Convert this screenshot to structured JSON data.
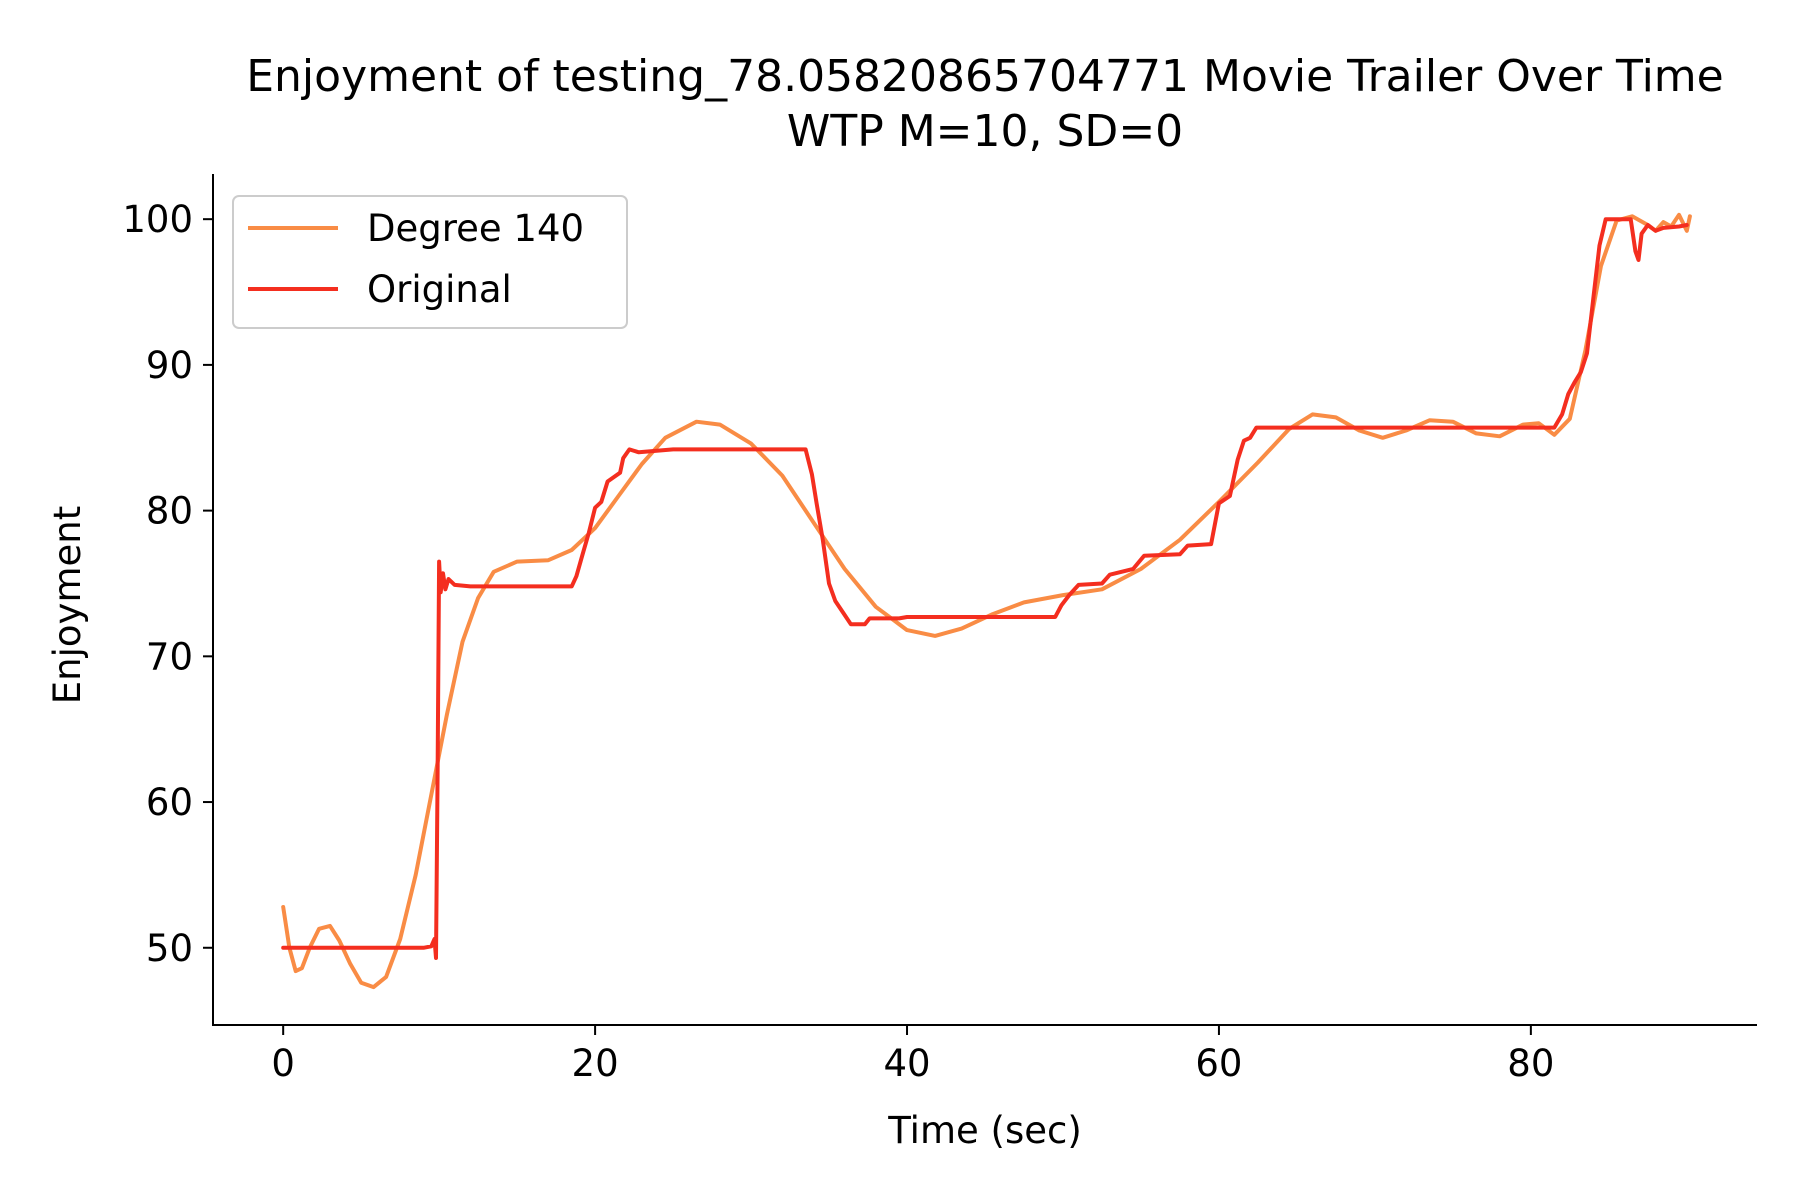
{
  "chart_data": {
    "type": "line",
    "title": "Enjoyment of testing_78.05820865704771 Movie Trailer Over Time",
    "subtitle": "WTP M=10, SD=0",
    "xlabel": "Time (sec)",
    "ylabel": "Enjoyment",
    "xlim": [
      -4.5,
      94.5
    ],
    "ylim": [
      44.7,
      103.1
    ],
    "xticks": [
      0,
      20,
      40,
      60,
      80
    ],
    "yticks": [
      50,
      60,
      70,
      80,
      90,
      100
    ],
    "grid": false,
    "legend_position": "upper-left",
    "series": [
      {
        "name": "Degree 140",
        "color": "#f98c45",
        "points": [
          [
            0,
            52.8
          ],
          [
            0.4,
            50.0
          ],
          [
            0.8,
            48.4
          ],
          [
            1.2,
            48.6
          ],
          [
            1.7,
            50.0
          ],
          [
            2.3,
            51.3
          ],
          [
            3.0,
            51.5
          ],
          [
            3.6,
            50.5
          ],
          [
            4.3,
            48.9
          ],
          [
            5.0,
            47.6
          ],
          [
            5.8,
            47.3
          ],
          [
            6.6,
            48.0
          ],
          [
            7.5,
            50.6
          ],
          [
            8.5,
            55.0
          ],
          [
            9.5,
            60.5
          ],
          [
            10.5,
            66.0
          ],
          [
            11.5,
            71.0
          ],
          [
            12.5,
            74.0
          ],
          [
            13.5,
            75.8
          ],
          [
            15.0,
            76.5
          ],
          [
            17.0,
            76.6
          ],
          [
            18.5,
            77.3
          ],
          [
            20.0,
            78.8
          ],
          [
            21.5,
            81.0
          ],
          [
            23.0,
            83.2
          ],
          [
            24.5,
            85.0
          ],
          [
            26.5,
            86.1
          ],
          [
            28.0,
            85.9
          ],
          [
            30.0,
            84.6
          ],
          [
            32.0,
            82.4
          ],
          [
            34.0,
            79.2
          ],
          [
            36.0,
            76.0
          ],
          [
            38.0,
            73.4
          ],
          [
            40.0,
            71.8
          ],
          [
            41.8,
            71.4
          ],
          [
            43.5,
            71.9
          ],
          [
            45.5,
            72.9
          ],
          [
            47.5,
            73.7
          ],
          [
            50.0,
            74.2
          ],
          [
            52.5,
            74.6
          ],
          [
            55.0,
            76.0
          ],
          [
            57.5,
            78.0
          ],
          [
            60.0,
            80.6
          ],
          [
            62.5,
            83.3
          ],
          [
            64.5,
            85.6
          ],
          [
            66.0,
            86.6
          ],
          [
            67.5,
            86.4
          ],
          [
            69.0,
            85.5
          ],
          [
            70.5,
            85.0
          ],
          [
            72.0,
            85.5
          ],
          [
            73.5,
            86.2
          ],
          [
            75.0,
            86.1
          ],
          [
            76.5,
            85.3
          ],
          [
            78.0,
            85.1
          ],
          [
            79.5,
            85.9
          ],
          [
            80.5,
            86.0
          ],
          [
            81.5,
            85.2
          ],
          [
            82.5,
            86.3
          ],
          [
            83.5,
            91.0
          ],
          [
            84.5,
            96.8
          ],
          [
            85.5,
            99.9
          ],
          [
            86.5,
            100.2
          ],
          [
            87.5,
            99.6
          ],
          [
            88.0,
            99.2
          ],
          [
            88.5,
            99.8
          ],
          [
            89.0,
            99.5
          ],
          [
            89.5,
            100.3
          ],
          [
            90.0,
            99.2
          ],
          [
            90.2,
            100.2
          ]
        ]
      },
      {
        "name": "Original",
        "color": "#f42e1f",
        "points": [
          [
            0,
            50.0
          ],
          [
            9.0,
            50.0
          ],
          [
            9.5,
            50.1
          ],
          [
            9.7,
            50.6
          ],
          [
            9.8,
            49.3
          ],
          [
            9.9,
            62.0
          ],
          [
            10.0,
            76.5
          ],
          [
            10.1,
            74.4
          ],
          [
            10.25,
            75.7
          ],
          [
            10.4,
            74.6
          ],
          [
            10.6,
            75.3
          ],
          [
            11.0,
            74.9
          ],
          [
            12.0,
            74.8
          ],
          [
            18.5,
            74.8
          ],
          [
            18.8,
            75.5
          ],
          [
            19.2,
            77.0
          ],
          [
            19.6,
            78.5
          ],
          [
            20.0,
            80.2
          ],
          [
            20.4,
            80.6
          ],
          [
            20.8,
            82.0
          ],
          [
            21.2,
            82.3
          ],
          [
            21.6,
            82.6
          ],
          [
            21.8,
            83.6
          ],
          [
            22.2,
            84.2
          ],
          [
            22.8,
            84.0
          ],
          [
            25.0,
            84.2
          ],
          [
            33.5,
            84.2
          ],
          [
            33.9,
            82.5
          ],
          [
            34.2,
            80.5
          ],
          [
            34.6,
            78.0
          ],
          [
            35.0,
            75.0
          ],
          [
            35.4,
            73.8
          ],
          [
            35.9,
            73.0
          ],
          [
            36.4,
            72.2
          ],
          [
            37.3,
            72.2
          ],
          [
            37.6,
            72.6
          ],
          [
            39.5,
            72.6
          ],
          [
            40.0,
            72.7
          ],
          [
            49.5,
            72.7
          ],
          [
            49.9,
            73.5
          ],
          [
            50.4,
            74.2
          ],
          [
            51.0,
            74.9
          ],
          [
            52.5,
            75.0
          ],
          [
            53.0,
            75.6
          ],
          [
            54.5,
            76.0
          ],
          [
            55.2,
            76.9
          ],
          [
            57.5,
            77.0
          ],
          [
            58.0,
            77.6
          ],
          [
            59.5,
            77.7
          ],
          [
            60.0,
            80.5
          ],
          [
            60.7,
            81.0
          ],
          [
            61.2,
            83.5
          ],
          [
            61.6,
            84.8
          ],
          [
            62.0,
            85.0
          ],
          [
            62.4,
            85.7
          ],
          [
            70.0,
            85.7
          ],
          [
            81.5,
            85.7
          ],
          [
            82.0,
            86.6
          ],
          [
            82.4,
            88.0
          ],
          [
            82.8,
            88.8
          ],
          [
            83.2,
            89.5
          ],
          [
            83.6,
            90.8
          ],
          [
            84.0,
            94.5
          ],
          [
            84.4,
            98.2
          ],
          [
            84.8,
            100.0
          ],
          [
            86.4,
            100.0
          ],
          [
            86.7,
            97.8
          ],
          [
            86.9,
            97.2
          ],
          [
            87.1,
            99.0
          ],
          [
            87.5,
            99.6
          ],
          [
            88.0,
            99.2
          ],
          [
            88.5,
            99.4
          ],
          [
            89.5,
            99.5
          ],
          [
            90.0,
            99.6
          ]
        ]
      }
    ]
  }
}
